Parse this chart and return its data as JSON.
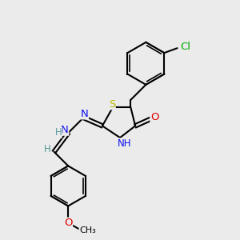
{
  "background_color": "#ebebeb",
  "bond_color": "black",
  "bond_width": 1.5,
  "atom_colors": {
    "C": "black",
    "N": "#1010ee",
    "O": "#dd0000",
    "S": "#bbbb00",
    "Cl": "#00aa00",
    "H": "#559999"
  },
  "font_size": 8.5,
  "fig_size": [
    3.0,
    3.0
  ],
  "dpi": 100,
  "xlim": [
    0,
    10
  ],
  "ylim": [
    0,
    10
  ]
}
